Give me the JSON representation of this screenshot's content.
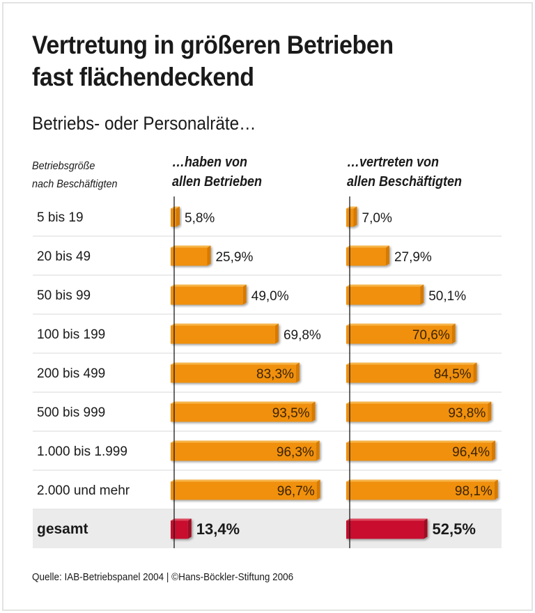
{
  "title_lines": [
    "Vertretung in größeren Betrieben",
    "fast flächendeckend"
  ],
  "subtitle": "Betriebs- oder Personalräte…",
  "row_header": [
    "Betriebsgröße",
    "nach Beschäftigten"
  ],
  "columns": [
    {
      "lines": [
        "…haben von",
        "allen Betrieben"
      ]
    },
    {
      "lines": [
        "…vertreten von",
        "allen Beschäftigten"
      ]
    }
  ],
  "source": "Quelle: IAB-Betriebspanel 2004 | ©Hans-Böckler-Stiftung 2006",
  "colors": {
    "bar": "#f0900c",
    "bar_top": "#f7b54a",
    "bar_side": "#d77a00",
    "total_bar": "#c8102e",
    "total_bar_top": "#de4a5e",
    "total_bar_side": "#9e0a22",
    "total_row_bg": "#ebebeb",
    "separator": "#e6e6e6",
    "axis": "#1a1a1a",
    "inside_label": "#3b2300"
  },
  "chart_data": {
    "type": "bar",
    "orientation": "horizontal",
    "title": "Vertretung in größeren Betrieben fast flächendeckend",
    "subtitle": "Betriebs- oder Personalräte…",
    "ylabel": "Betriebsgröße nach Beschäftigten",
    "unit": "%",
    "xlim": [
      0,
      100
    ],
    "grid": false,
    "categories": [
      "5 bis 19",
      "20 bis 49",
      "50 bis 99",
      "100 bis 199",
      "200 bis 499",
      "500 bis 999",
      "1.000 bis 1.999",
      "2.000 und mehr",
      "gesamt"
    ],
    "series": [
      {
        "name": "…haben von allen Betrieben",
        "values": [
          5.8,
          25.9,
          49.0,
          69.8,
          83.3,
          93.5,
          96.3,
          96.7,
          13.4
        ],
        "labels": [
          "5,8%",
          "25,9%",
          "49,0%",
          "69,8%",
          "83,3%",
          "93,5%",
          "96,3%",
          "96,7%",
          "13,4%"
        ]
      },
      {
        "name": "…vertreten von allen Beschäftigten",
        "values": [
          7.0,
          27.9,
          50.1,
          70.6,
          84.5,
          93.8,
          96.4,
          98.1,
          52.5
        ],
        "labels": [
          "7,0%",
          "27,9%",
          "50,1%",
          "70,6%",
          "84,5%",
          "93,8%",
          "96,4%",
          "98,1%",
          "52,5%"
        ]
      }
    ],
    "highlight_category": "gesamt",
    "source": "Quelle: IAB-Betriebspanel 2004 | ©Hans-Böckler-Stiftung 2006"
  }
}
